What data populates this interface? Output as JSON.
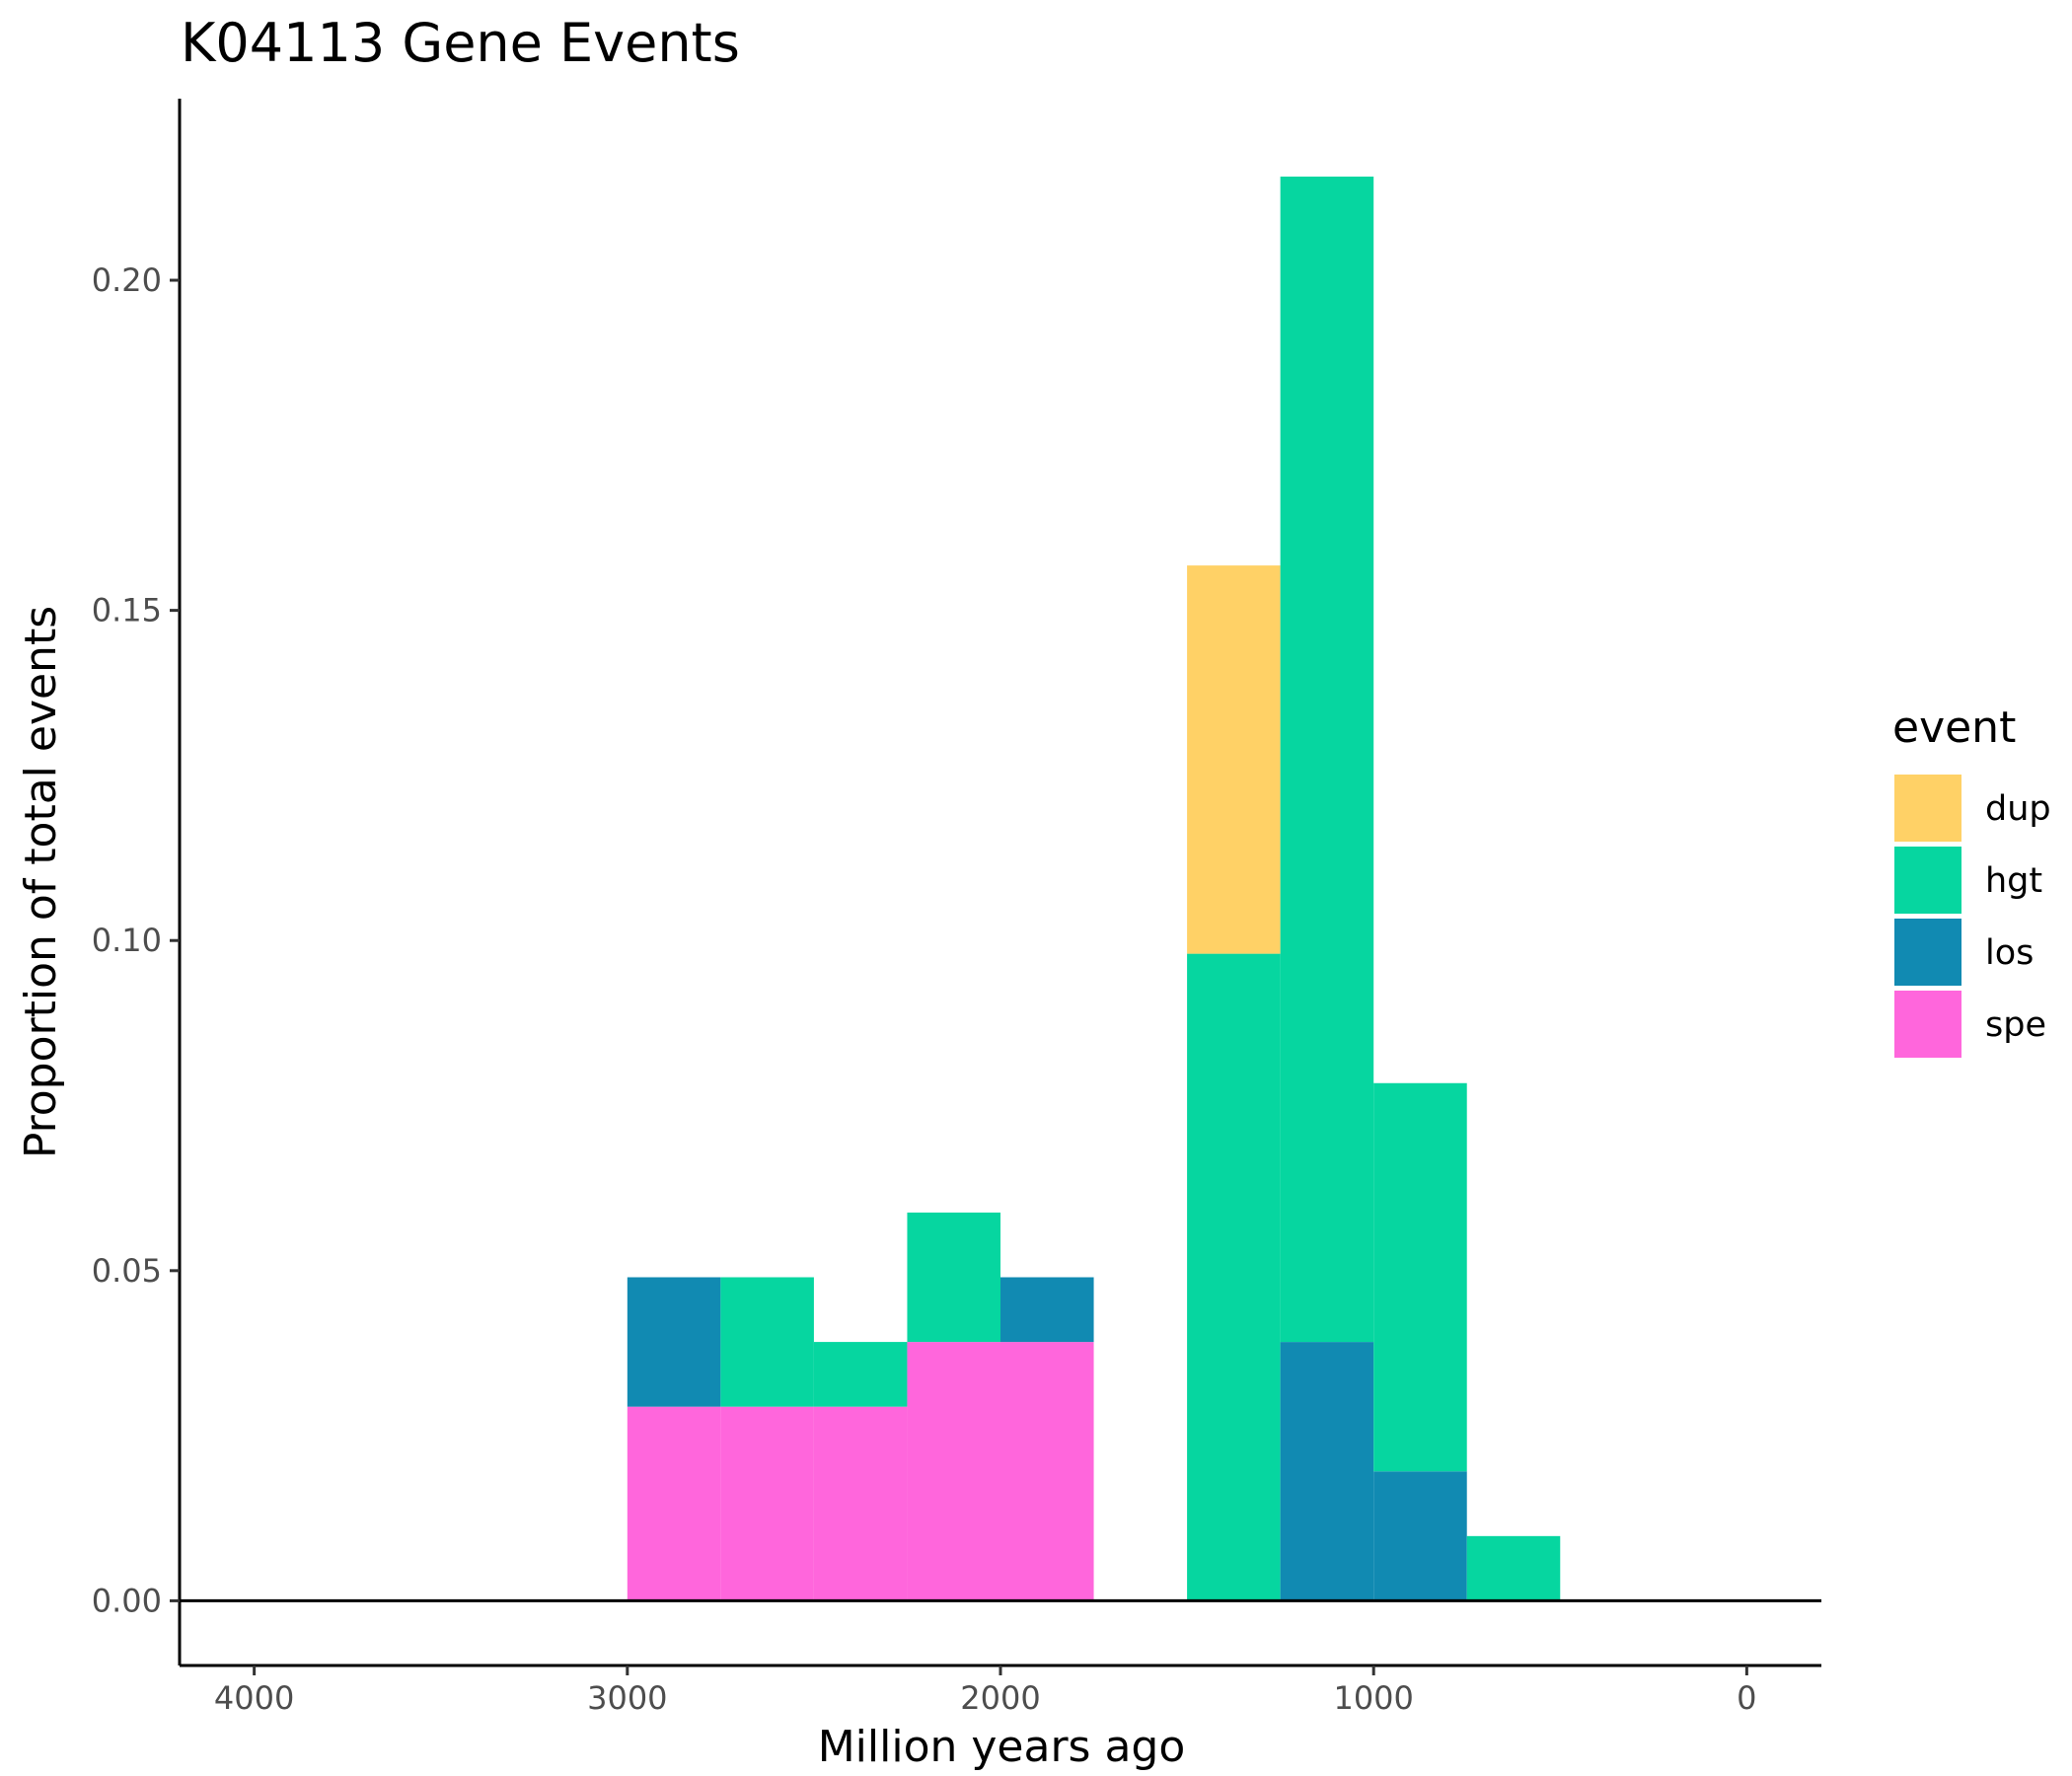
{
  "chart_data": {
    "type": "bar",
    "stacked": true,
    "title": "K04113 Gene Events",
    "xlabel": "Million years ago",
    "ylabel": "Proportion of total events",
    "xlim": [
      4200,
      -200
    ],
    "x_reversed": true,
    "ylim": [
      -0.0098,
      0.2275
    ],
    "grid": false,
    "legend_placement": "right",
    "legend_title": "event",
    "x_ticks": [
      4000,
      3000,
      2000,
      1000,
      0
    ],
    "x_tick_labels": [
      "4000",
      "3000",
      "2000",
      "1000",
      "0"
    ],
    "y_ticks": [
      0,
      0.05,
      0.1,
      0.15,
      0.2
    ],
    "y_tick_labels": [
      "0.00",
      "0.05",
      "0.10",
      "0.15",
      "0.20"
    ],
    "bin_edges": [
      3000,
      2750,
      2500,
      2250,
      2000,
      1750,
      1500,
      1250,
      1000,
      750,
      500
    ],
    "series": [
      {
        "name": "dup",
        "color": "#FFD166",
        "values": [
          0,
          0,
          0,
          0,
          0,
          0,
          0.0588,
          0,
          0,
          0
        ]
      },
      {
        "name": "hgt",
        "color": "#06D6A0",
        "values": [
          0,
          0.0196,
          0.0098,
          0.0196,
          0,
          0,
          0.098,
          0.1765,
          0.0588,
          0.0098
        ]
      },
      {
        "name": "los",
        "color": "#118AB2",
        "values": [
          0.0196,
          0,
          0,
          0,
          0.0098,
          0,
          0,
          0.0392,
          0.0196,
          0
        ]
      },
      {
        "name": "spe",
        "color": "#FF66DC",
        "values": [
          0.0294,
          0.0294,
          0.0294,
          0.0392,
          0.0392,
          0,
          0,
          0,
          0,
          0
        ]
      }
    ]
  }
}
